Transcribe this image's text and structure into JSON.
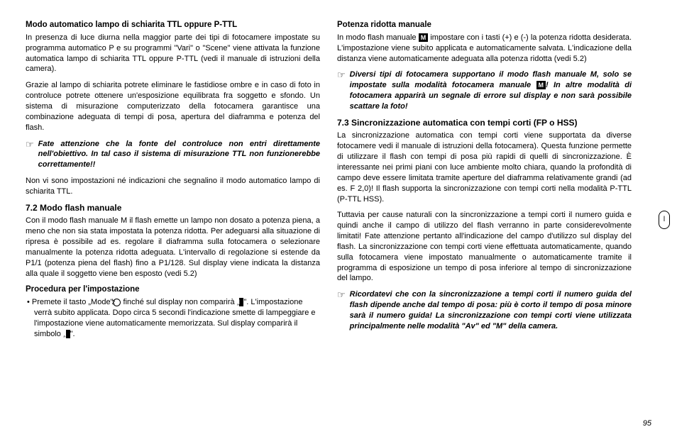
{
  "left": {
    "h1": "Modo automatico lampo di schiarita TTL oppure P-TTL",
    "p1": "In presenza di luce diurna nella maggior parte dei tipi di fotocamere impostate su programma automatico P e su programmi \"Vari\" o \"Scene\" viene attivata la funzione automatica lampo di schiarita TTL oppure P-TTL (vedi il manuale di istruzioni della camera).",
    "p2": "Grazie al lampo di schiarita potrete eliminare le fastidiose ombre e in caso di foto in controluce potrete ottenere un'esposizione equilibrata fra soggetto e sfondo. Un sistema di misurazione computerizzato della fotocamera garantisce una combinazione adeguata di tempi di posa, apertura del diaframma e potenza del flash.",
    "note1": "Fate attenzione che la fonte del controluce non entri direttamente nell'obiettivo. In tal caso il sistema di misurazione TTL non funzionerebbe correttamente!!",
    "p3": "Non vi sono impostazioni né indicazioni che segnalino il modo automatico lampo di schiarita TTL.",
    "h2": "7.2 Modo flash manuale",
    "p4": "Con il modo flash manuale M il flash emette un lampo non dosato a potenza piena, a meno che non sia stata impostata la potenza ridotta. Per adeguarsi alla situazione di ripresa è possibile ad es. regolare il diaframma sulla fotocamera o selezionare manualmente la potenza ridotta adeguata. L'intervallo di regolazione si estende da P1/1 (potenza piena del flash) fino a P1/128. Sul display viene indicata la distanza alla quale il soggetto viene ben esposto (vedi 5.2)",
    "h3": "Procedura per l'impostazione",
    "b1a": "• Premete il tasto „Mode\"",
    "b1b": " finché sul display non comparirà „",
    "b1c": "\". L'impostazione verrà subito applicata. Dopo circa 5 secondi l'indicazione smette di lampeggiare e l'impostazione viene automaticamente memorizzata. Sul display comparirà il simbolo „",
    "b1d": "\"."
  },
  "right": {
    "h1": "Potenza ridotta manuale",
    "p1a": "In modo flash manuale ",
    "p1b": " impostare con i tasti (+) e (-) la potenza ridotta desiderata.  L'impostazione viene subito applicata e automaticamente salvata. L'indicazione della distanza viene automaticamente adeguata alla potenza ridotta (vedi 5.2)",
    "note1a": "Diversi tipi di fotocamera supportano il modo flash manuale M, solo se impostate sulla modalità fotocamera manuale ",
    "note1b": "! In altre modalità di fotocamera apparirà un segnale di errore sul display e non sarà possibile scattare la foto!",
    "h2": "7.3 Sincronizzazione automatica con tempi corti (FP o HSS)",
    "p2": "La sincronizzazione automatica con tempi corti viene supportata da diverse fotocamere vedi il manuale di istruzioni della fotocamera). Questa funzione permette di utilizzare il flash con tempi di posa più rapidi di quelli di sincronizzazione. È interessante nei primi piani con luce ambiente molto chiara, quando la profondità di campo deve essere limitata tramite aperture del diaframma relativamente grandi (ad es. F 2,0)! Il flash supporta la sincronizzazione con tempi corti nella modalità P-TTL (P-TTL HSS).",
    "p3": "Tuttavia per cause naturali con la sincronizzazione a tempi corti il numero guida e quindi anche il campo di utilizzo del flash verranno in parte considerevolmente limitati! Fate attenzione pertanto all'indicazione del campo d'utilizzo sul display del flash.  La sincronizzazione con tempi corti viene effettuata automaticamente, quando sulla fotocamera viene impostato manualmente o automaticamente tramite il programma di esposizione un tempo di posa inferiore al tempo di sincronizzazione del lampo.",
    "note2": "Ricordatevi che con la sincronizzazione a tempi corti il numero guida del flash dipende anche dal tempo di posa: più è corto il tempo di posa minore sarà il numero guida! La sincronizzazione con tempi corti viene utilizzata principalmente nelle modalità \"Av\" ed \"M\" della camera."
  },
  "pageNum": "95",
  "tabLabel": "l",
  "icons": {
    "pointer": "☞",
    "m": "M",
    "circ2": "2"
  }
}
